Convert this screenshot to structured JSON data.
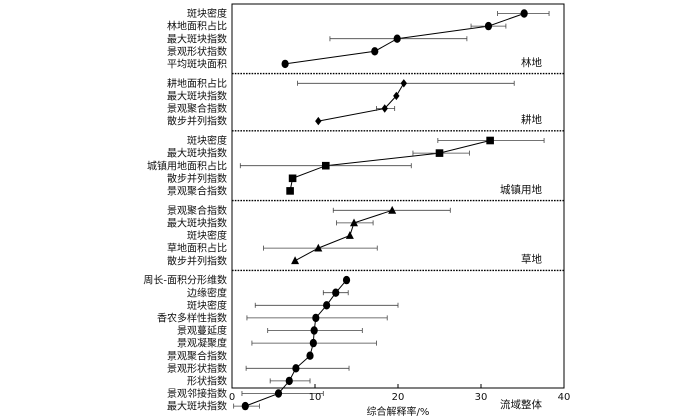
{
  "chart_data": {
    "type": "scatter",
    "xlabel": "综合解释率/%",
    "xlim": [
      0,
      40
    ],
    "xticks": [
      0,
      10,
      20,
      30,
      40
    ],
    "xtick_labels": [
      "0",
      "10",
      "20",
      "30",
      "40"
    ],
    "groups": [
      {
        "name": "林地",
        "marker": "circle",
        "points": [
          {
            "label": "斑块密度",
            "value": 35.2,
            "err": [
              32.0,
              38.2
            ]
          },
          {
            "label": "林地面积占比",
            "value": 30.9,
            "err": [
              28.8,
              33.0
            ]
          },
          {
            "label": "最大斑块指数",
            "value": 19.9,
            "err": [
              11.8,
              28.3
            ]
          },
          {
            "label": "景观形状指数",
            "value": 17.2,
            "err": [
              17.2,
              17.2
            ]
          },
          {
            "label": "平均斑块面积",
            "value": 6.4,
            "err": [
              6.4,
              6.4
            ]
          }
        ]
      },
      {
        "name": "耕地",
        "marker": "diamond",
        "points": [
          {
            "label": "耕地面积占比",
            "value": 20.7,
            "err": [
              7.9,
              34.0
            ]
          },
          {
            "label": "最大斑块指数",
            "value": 19.8,
            "err": [
              19.8,
              19.8
            ]
          },
          {
            "label": "景观聚合指数",
            "value": 18.4,
            "err": [
              17.4,
              19.6
            ]
          },
          {
            "label": "散步并列指数",
            "value": 10.4,
            "err": [
              10.4,
              10.4
            ]
          }
        ]
      },
      {
        "name": "城镇用地",
        "marker": "square",
        "points": [
          {
            "label": "斑块密度",
            "value": 31.1,
            "err": [
              24.8,
              37.6
            ]
          },
          {
            "label": "最大斑块指数",
            "value": 25.0,
            "err": [
              21.8,
              28.6
            ]
          },
          {
            "label": "城镇用地面积占比",
            "value": 11.3,
            "err": [
              1.0,
              21.6
            ]
          },
          {
            "label": "散步并列指数",
            "value": 7.3,
            "err": [
              7.3,
              7.3
            ]
          },
          {
            "label": "景观聚合指数",
            "value": 7.0,
            "err": [
              7.0,
              7.0
            ]
          }
        ]
      },
      {
        "name": "草地",
        "marker": "triangle",
        "points": [
          {
            "label": "景观聚合指数",
            "value": 19.3,
            "err": [
              12.2,
              26.3
            ]
          },
          {
            "label": "最大斑块指数",
            "value": 14.7,
            "err": [
              12.6,
              17.0
            ]
          },
          {
            "label": "斑块密度",
            "value": 14.2,
            "err": [
              14.2,
              14.2
            ]
          },
          {
            "label": "草地面积占比",
            "value": 10.4,
            "err": [
              3.8,
              17.5
            ]
          },
          {
            "label": "散步并列指数",
            "value": 7.6,
            "err": [
              7.6,
              7.6
            ]
          }
        ]
      },
      {
        "name": "流域整体",
        "marker": "circle",
        "points": [
          {
            "label": "周长-面积分形维数",
            "value": 13.8,
            "err": [
              13.8,
              13.8
            ]
          },
          {
            "label": "边缘密度",
            "value": 12.5,
            "err": [
              11.0,
              14.0
            ]
          },
          {
            "label": "斑块密度",
            "value": 11.4,
            "err": [
              2.8,
              20.0
            ]
          },
          {
            "label": "香农多样性指数",
            "value": 10.1,
            "err": [
              1.8,
              18.7
            ]
          },
          {
            "label": "景观蔓延度",
            "value": 9.9,
            "err": [
              4.3,
              15.7
            ]
          },
          {
            "label": "景观凝聚度",
            "value": 9.8,
            "err": [
              2.4,
              17.4
            ]
          },
          {
            "label": "景观聚合指数",
            "value": 9.4,
            "err": [
              9.4,
              9.4
            ]
          },
          {
            "label": "景观形状指数",
            "value": 7.7,
            "err": [
              1.7,
              14.1
            ]
          },
          {
            "label": "形状指数",
            "value": 6.9,
            "err": [
              4.6,
              9.4
            ]
          },
          {
            "label": "景观邻接指数",
            "value": 5.6,
            "err": [
              1.2,
              11.0
            ]
          },
          {
            "label": "最大斑块指数",
            "value": 1.6,
            "err": [
              0.2,
              3.3
            ]
          }
        ]
      }
    ]
  }
}
